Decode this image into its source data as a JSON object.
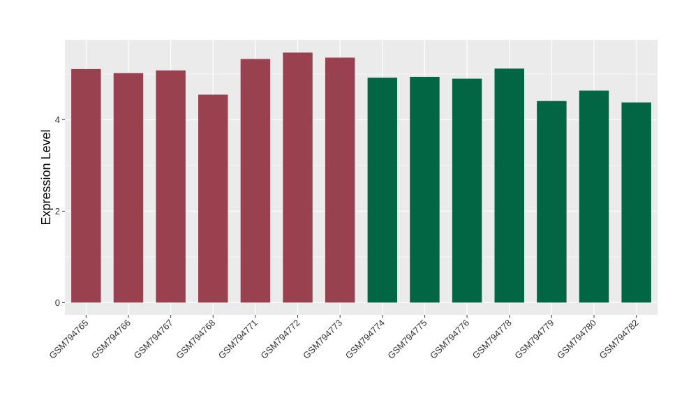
{
  "chart_data": {
    "type": "bar",
    "title": "",
    "xlabel": "",
    "ylabel": "Expression Level",
    "categories": [
      "GSM794765",
      "GSM794766",
      "GSM794767",
      "GSM794768",
      "GSM794771",
      "GSM794772",
      "GSM794773",
      "GSM794774",
      "GSM794775",
      "GSM794776",
      "GSM794778",
      "GSM794779",
      "GSM794780",
      "GSM794782"
    ],
    "values": [
      5.11,
      5.02,
      5.08,
      4.55,
      5.33,
      5.47,
      5.36,
      4.92,
      4.94,
      4.9,
      5.12,
      4.41,
      4.64,
      4.38
    ],
    "groups": [
      "A",
      "A",
      "A",
      "A",
      "A",
      "A",
      "A",
      "B",
      "B",
      "B",
      "B",
      "B",
      "B",
      "B"
    ],
    "group_colors": {
      "A": "#99414F",
      "B": "#026645"
    },
    "ylim": [
      -0.27,
      5.75
    ],
    "yticks": [
      0,
      2,
      4
    ],
    "grid": true,
    "legend": "none",
    "panel_background": "#EBEBEB",
    "grid_color": "#FFFFFF"
  }
}
